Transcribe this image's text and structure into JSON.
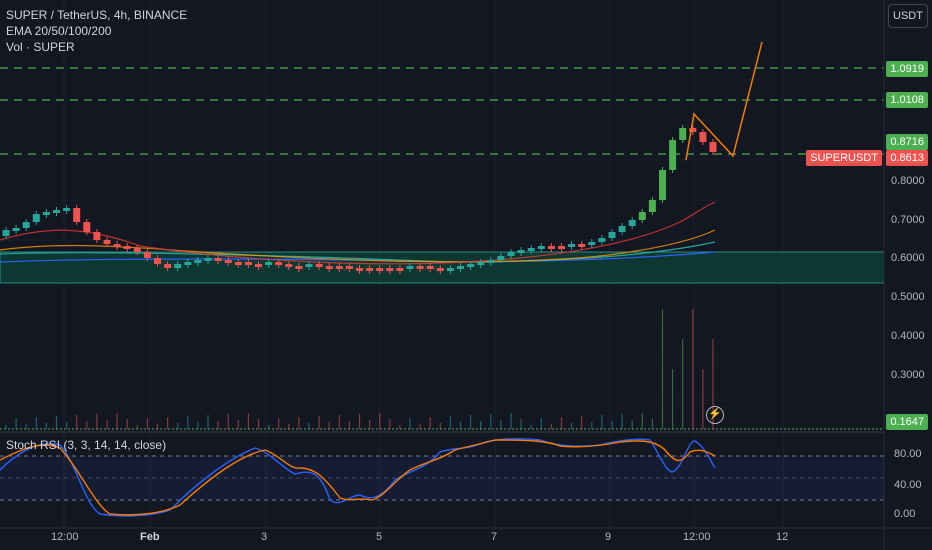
{
  "legend": {
    "symbol": "SUPER / TetherUS, 4h, BINANCE",
    "ema": "EMA 20/50/100/200",
    "vol": "Vol · SUPER",
    "stoch": "Stoch RSI (3, 3, 14, 14, close)"
  },
  "currency_button": "USDT",
  "price_labels": {
    "level1": "1.0919",
    "level2": "1.0108",
    "level3": "0.8716",
    "symbol": "SUPERUSDT",
    "current": "0.8613",
    "volume_level": "0.1647"
  },
  "price_axis": [
    "0.8000",
    "0.7000",
    "0.6000",
    "0.5000",
    "0.4000",
    "0.3000"
  ],
  "stoch_axis": [
    "80.00",
    "40.00",
    "0.00"
  ],
  "time_axis": [
    "12:00",
    "Feb",
    "3",
    "5",
    "7",
    "9",
    "12:00",
    "12"
  ],
  "colors": {
    "background": "#131722",
    "up": "#26a69a",
    "up_bright": "#4caf50",
    "down": "#ef5350",
    "level_line": "#4caf50",
    "drawing": "#f57c00",
    "stoch_k": "#2962ff",
    "stoch_d": "#f57c00"
  },
  "icons": {
    "alert": "lightning-icon"
  }
}
